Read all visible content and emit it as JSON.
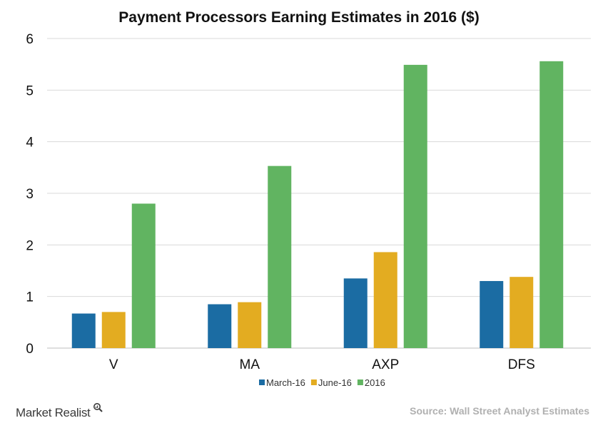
{
  "colors": {
    "march": "#1b6ca3",
    "june": "#e3ac21",
    "y2016": "#61b461",
    "grid": "#d9d9d9"
  },
  "chart_data": {
    "type": "bar",
    "title": "Payment Processors Earning Estimates  in 2016 ($)",
    "categories": [
      "V",
      "MA",
      "AXP",
      "DFS"
    ],
    "series": [
      {
        "name": "March-16",
        "values": [
          0.67,
          0.85,
          1.35,
          1.3
        ]
      },
      {
        "name": "June-16",
        "values": [
          0.7,
          0.89,
          1.86,
          1.38
        ]
      },
      {
        "name": "2016",
        "values": [
          2.8,
          3.53,
          5.49,
          5.56
        ]
      }
    ],
    "ylim": [
      0,
      6
    ],
    "yticks": [
      0,
      1,
      2,
      3,
      4,
      5,
      6
    ],
    "grid": true,
    "legend": "bottom"
  },
  "footer": {
    "brand": "Market Realist",
    "source": "Source: Wall Street Analyst  Estimates"
  },
  "icons": {
    "brand_icon": "magnifier-icon"
  }
}
